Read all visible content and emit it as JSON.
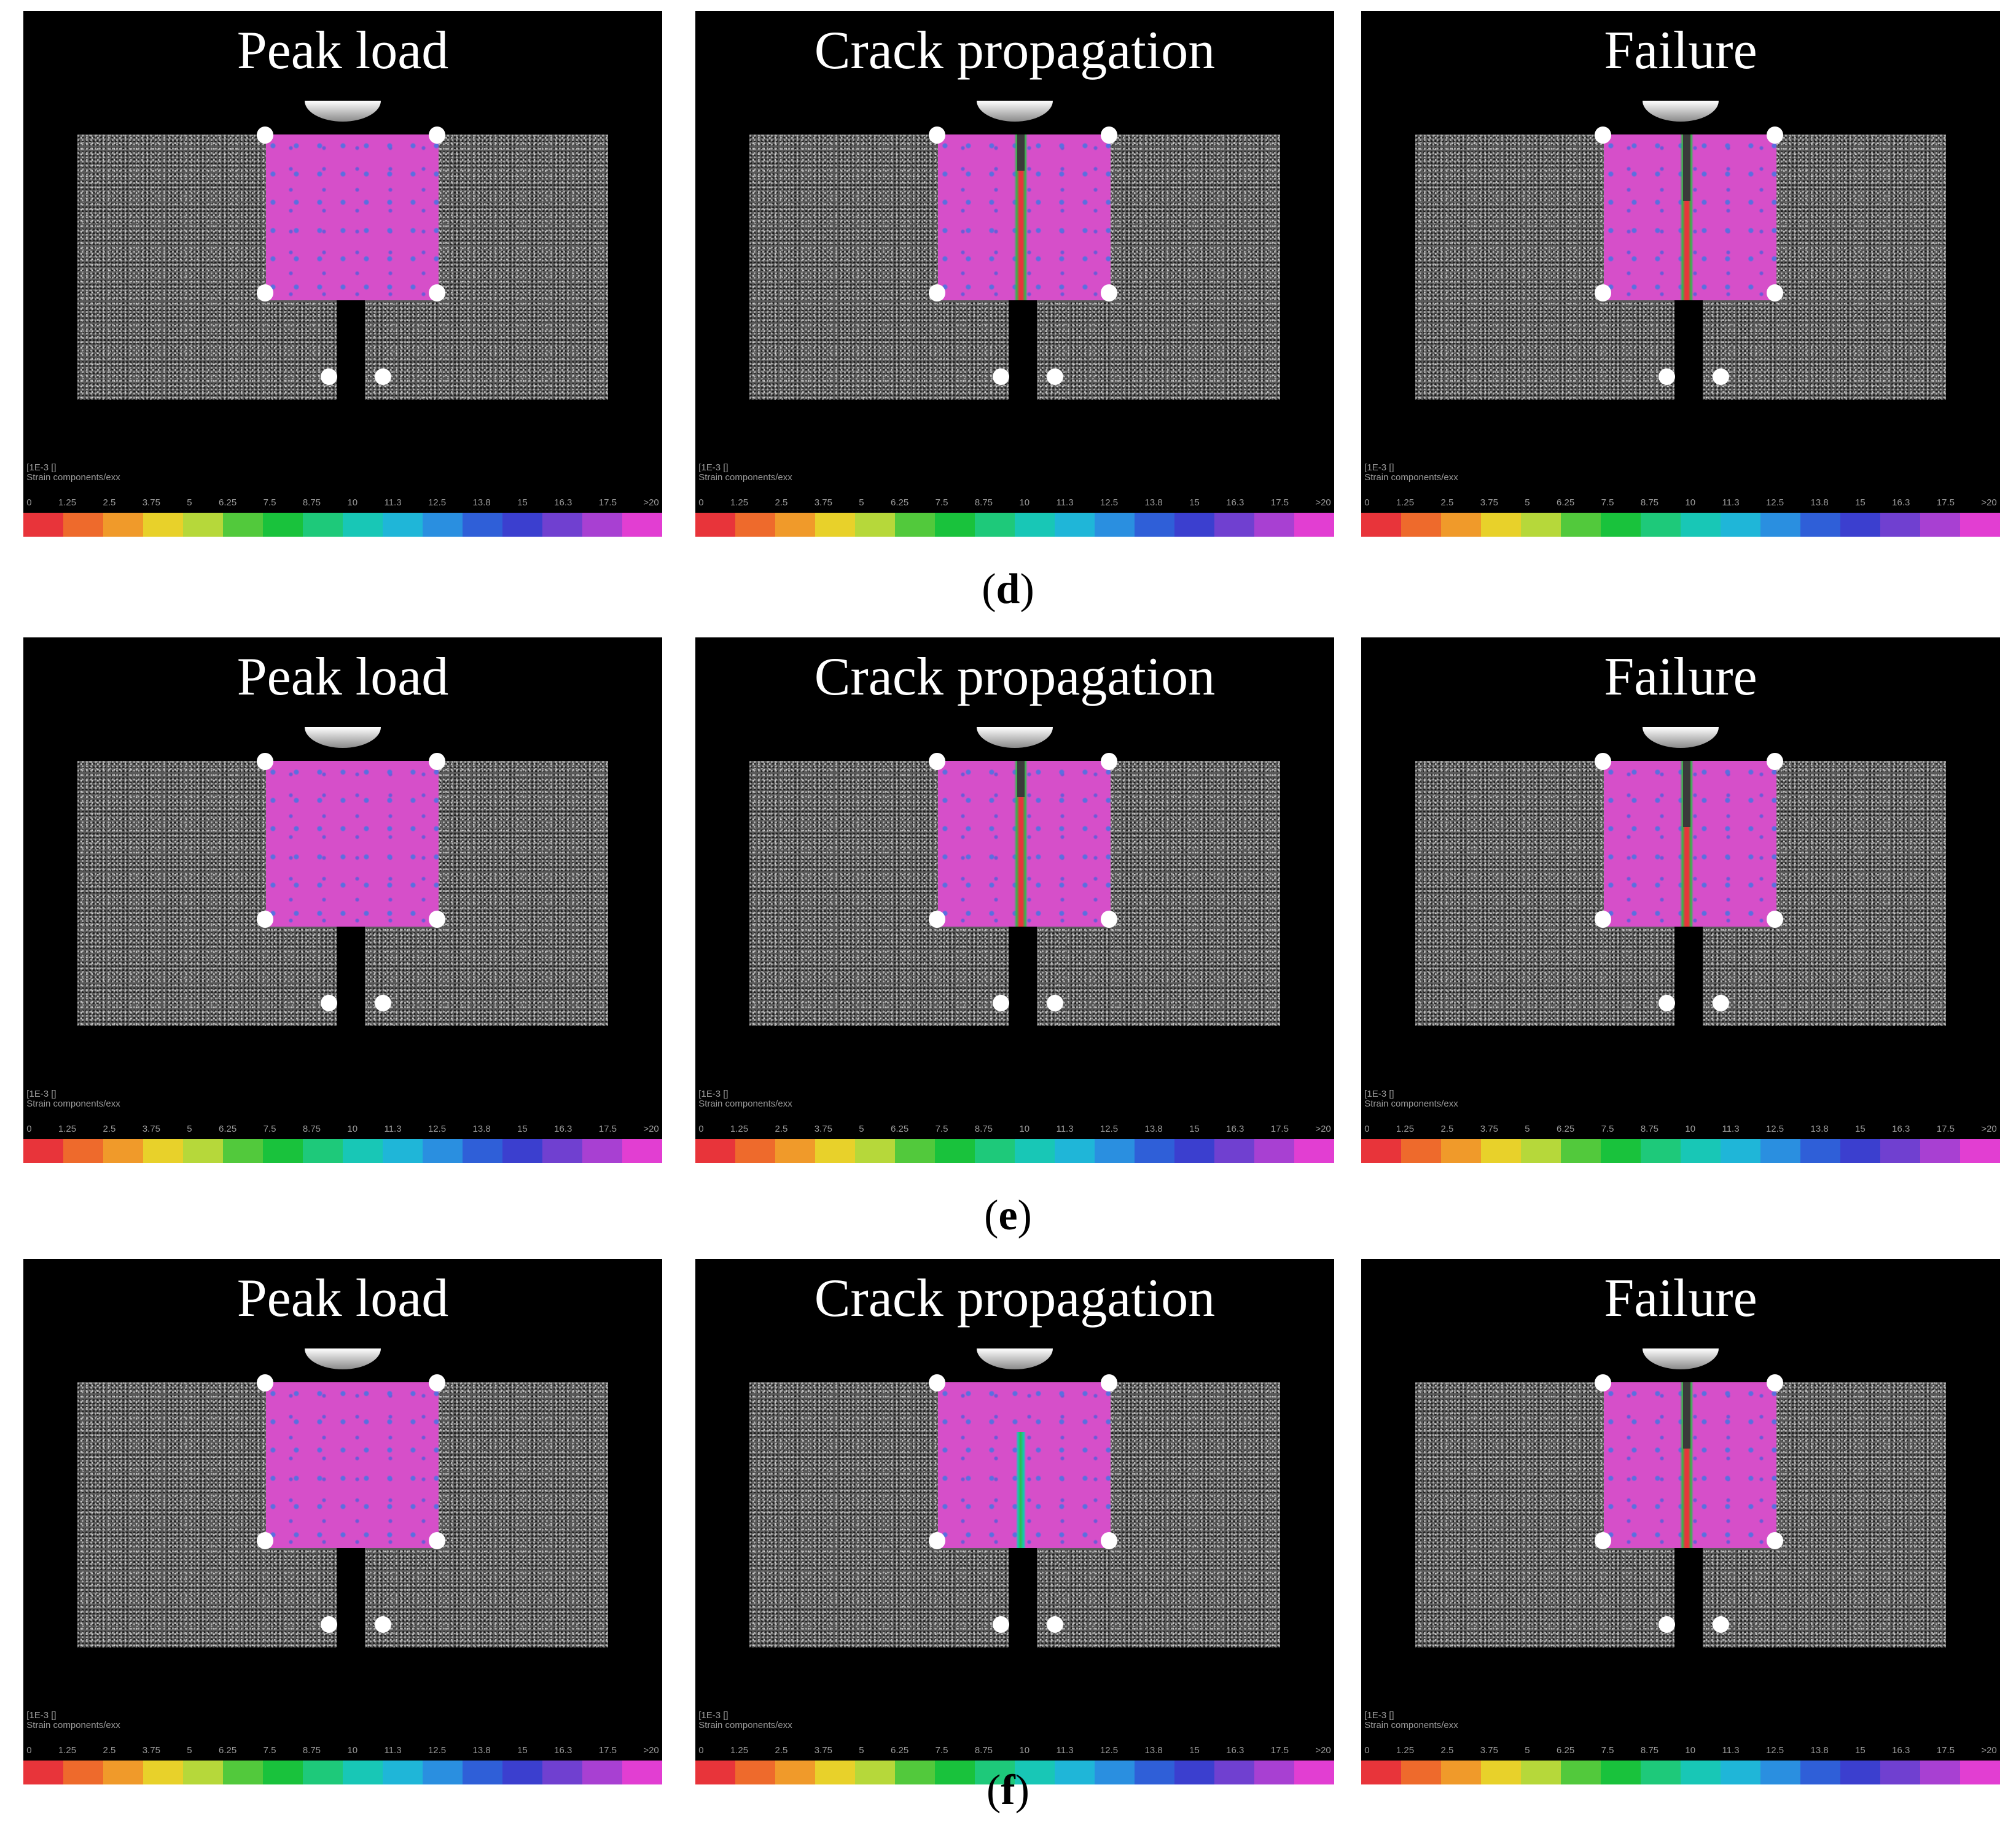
{
  "figure": {
    "rows": [
      {
        "caption_letter": "d",
        "panels": [
          {
            "title": "Peak load",
            "stage": "peak"
          },
          {
            "title": "Crack propagation",
            "stage": "crack"
          },
          {
            "title": "Failure",
            "stage": "failure"
          }
        ]
      },
      {
        "caption_letter": "e",
        "panels": [
          {
            "title": "Peak load",
            "stage": "peak"
          },
          {
            "title": "Crack propagation",
            "stage": "crack"
          },
          {
            "title": "Failure",
            "stage": "failure"
          }
        ]
      },
      {
        "caption_letter": "f",
        "panels": [
          {
            "title": "Peak load",
            "stage": "peak"
          },
          {
            "title": "Crack propagation",
            "stage": "mid"
          },
          {
            "title": "Failure",
            "stage": "failure"
          }
        ]
      }
    ],
    "legend": {
      "unit_label": "[1E-3 []",
      "component_label": "Strain components/exx",
      "ticks": [
        "0",
        "1.25",
        "2.5",
        "3.75",
        "5",
        "6.25",
        "7.5",
        "8.75",
        "10",
        "11.3",
        "12.5",
        "13.8",
        "15",
        "16.3",
        "17.5",
        ">20"
      ],
      "colors": [
        "#e8343a",
        "#ee6a2c",
        "#f09a2a",
        "#e8d12a",
        "#b6d83a",
        "#52c93c",
        "#19c23c",
        "#1ec97a",
        "#18c7b6",
        "#1fb6d8",
        "#2a8fe0",
        "#2f5fd8",
        "#3b3fcf",
        "#7040d0",
        "#a840d2",
        "#e23ed2"
      ]
    }
  }
}
